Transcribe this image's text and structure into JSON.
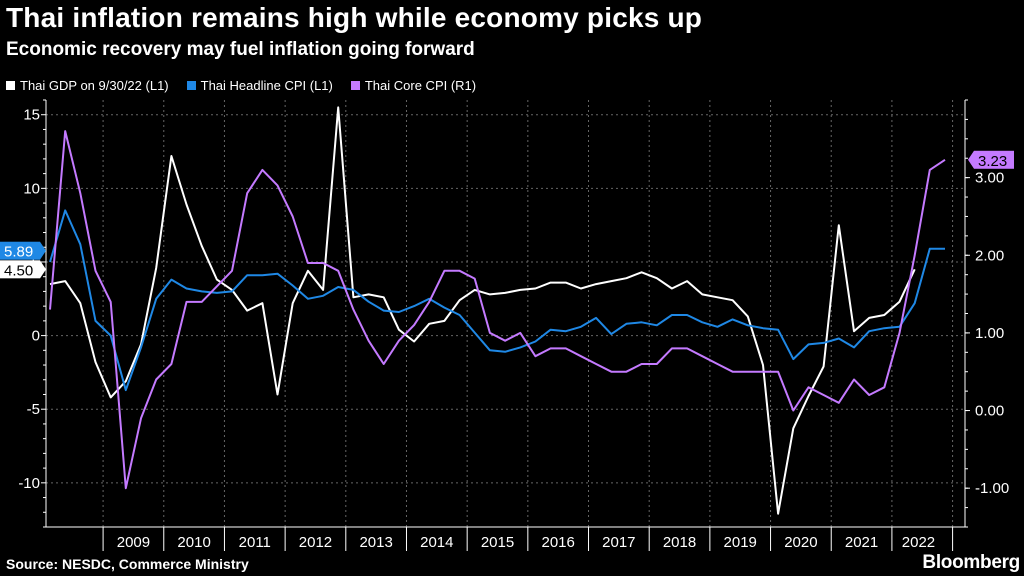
{
  "title": "Thai inflation remains high while economy picks up",
  "subtitle": "Economic recovery may fuel inflation going forward",
  "source": "Source: NESDC, Commerce Ministry",
  "brand": "Bloomberg",
  "colors": {
    "gdp": "#ffffff",
    "headline": "#1f88e5",
    "core": "#c47aff",
    "grid": "#666666"
  },
  "chart_data": {
    "type": "line",
    "x": [
      "2008Q1",
      "2008Q2",
      "2008Q3",
      "2008Q4",
      "2009Q1",
      "2009Q2",
      "2009Q3",
      "2009Q4",
      "2010Q1",
      "2010Q2",
      "2010Q3",
      "2010Q4",
      "2011Q1",
      "2011Q2",
      "2011Q3",
      "2011Q4",
      "2012Q1",
      "2012Q2",
      "2012Q3",
      "2012Q4",
      "2013Q1",
      "2013Q2",
      "2013Q3",
      "2013Q4",
      "2014Q1",
      "2014Q2",
      "2014Q3",
      "2014Q4",
      "2015Q1",
      "2015Q2",
      "2015Q3",
      "2015Q4",
      "2016Q1",
      "2016Q2",
      "2016Q3",
      "2016Q4",
      "2017Q1",
      "2017Q2",
      "2017Q3",
      "2017Q4",
      "2018Q1",
      "2018Q2",
      "2018Q3",
      "2018Q4",
      "2019Q1",
      "2019Q2",
      "2019Q3",
      "2019Q4",
      "2020Q1",
      "2020Q2",
      "2020Q3",
      "2020Q4",
      "2021Q1",
      "2021Q2",
      "2021Q3",
      "2021Q4",
      "2022Q1",
      "2022Q2",
      "2022Q3",
      "2022Q4"
    ],
    "x_tick_labels": [
      "2009",
      "2010",
      "2011",
      "2012",
      "2013",
      "2014",
      "2015",
      "2016",
      "2017",
      "2018",
      "2019",
      "2020",
      "2021",
      "2022"
    ],
    "series": [
      {
        "name": "Thai GDP on 9/30/22 (L1)",
        "axis": "left",
        "color": "#ffffff",
        "values": [
          3.5,
          3.7,
          2.2,
          -1.8,
          -4.2,
          -3.1,
          -0.6,
          4.6,
          12.2,
          8.9,
          6.1,
          3.8,
          3.1,
          1.7,
          2.2,
          -4.0,
          2.2,
          4.4,
          3.1,
          15.5,
          2.6,
          2.8,
          2.6,
          0.4,
          -0.4,
          0.8,
          1.0,
          2.4,
          3.1,
          2.8,
          2.9,
          3.1,
          3.2,
          3.6,
          3.6,
          3.2,
          3.5,
          3.7,
          3.9,
          4.3,
          3.9,
          3.2,
          3.7,
          2.8,
          2.6,
          2.4,
          1.3,
          -2.0,
          -12.1,
          -6.3,
          -4.1,
          -2.1,
          7.5,
          0.3,
          1.2,
          1.4,
          2.3,
          4.5,
          null,
          null
        ],
        "last_label": "4.50"
      },
      {
        "name": "Thai Headline CPI (L1)",
        "axis": "left",
        "color": "#1f88e5",
        "values": [
          5.0,
          8.5,
          6.2,
          1.0,
          0.0,
          -3.7,
          -0.8,
          2.5,
          3.8,
          3.2,
          3.0,
          2.9,
          3.0,
          4.1,
          4.1,
          4.2,
          3.4,
          2.5,
          2.7,
          3.3,
          3.1,
          2.3,
          1.7,
          1.6,
          2.0,
          2.5,
          1.9,
          1.4,
          0.2,
          -1.0,
          -1.1,
          -0.8,
          -0.4,
          0.4,
          0.3,
          0.6,
          1.2,
          0.1,
          0.8,
          0.9,
          0.7,
          1.4,
          1.4,
          0.9,
          0.6,
          1.1,
          0.7,
          0.5,
          0.4,
          -1.6,
          -0.6,
          -0.5,
          -0.2,
          -0.8,
          0.3,
          0.5,
          0.6,
          2.2,
          5.9,
          5.9
        ],
        "last_label": "5.89"
      },
      {
        "name": "Thai Core CPI (R1)",
        "axis": "right",
        "color": "#c47aff",
        "values": [
          1.3,
          3.6,
          2.8,
          1.8,
          1.4,
          -1.0,
          -0.1,
          0.4,
          0.6,
          1.4,
          1.4,
          1.6,
          1.8,
          2.8,
          3.1,
          2.9,
          2.5,
          1.9,
          1.9,
          1.8,
          1.3,
          0.9,
          0.6,
          0.9,
          1.1,
          1.4,
          1.8,
          1.8,
          1.7,
          1.0,
          0.9,
          1.0,
          0.7,
          0.8,
          0.8,
          0.7,
          0.6,
          0.5,
          0.5,
          0.6,
          0.6,
          0.8,
          0.8,
          0.7,
          0.6,
          0.5,
          0.5,
          0.5,
          0.5,
          0.0,
          0.3,
          0.2,
          0.1,
          0.4,
          0.2,
          0.3,
          1.0,
          2.0,
          3.1,
          3.23
        ],
        "last_label": "3.23"
      }
    ],
    "left_axis": {
      "ylim": [
        -13,
        16
      ],
      "ticks": [
        -10,
        -5,
        0,
        5,
        10,
        15
      ],
      "tick_labels": [
        "-10",
        "-5",
        "0",
        "5",
        "10",
        "15"
      ]
    },
    "right_axis": {
      "ylim": [
        -1.5,
        4.0
      ],
      "ticks": [
        -1,
        0,
        1,
        2,
        3
      ],
      "tick_labels": [
        "-1.00",
        "0.00",
        "1.00",
        "2.00",
        "3.00"
      ]
    },
    "grid": true,
    "legend_position": "top-left"
  }
}
